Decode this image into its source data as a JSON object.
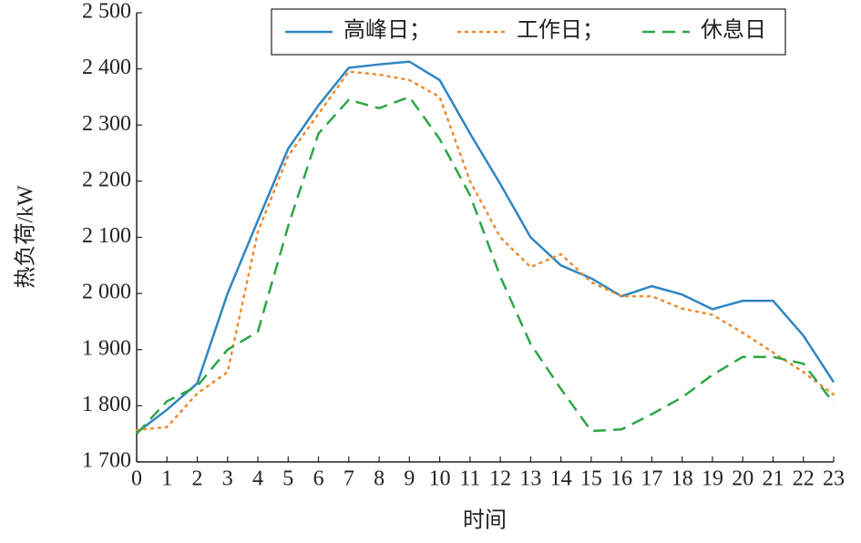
{
  "chart_data": {
    "type": "line",
    "x_label": "时间",
    "y_label": "热负荷/kW",
    "x": [
      0,
      1,
      2,
      3,
      4,
      5,
      6,
      7,
      8,
      9,
      10,
      11,
      12,
      13,
      14,
      15,
      16,
      17,
      18,
      19,
      20,
      21,
      22,
      23
    ],
    "xlim": [
      0,
      23
    ],
    "xticks": [
      0,
      1,
      2,
      3,
      4,
      5,
      6,
      7,
      8,
      9,
      10,
      11,
      12,
      13,
      14,
      15,
      16,
      17,
      18,
      19,
      20,
      21,
      22,
      23
    ],
    "ylim": [
      1700,
      2500
    ],
    "yticks": [
      {
        "value": 1700,
        "label": "1 700"
      },
      {
        "value": 1800,
        "label": "1 800"
      },
      {
        "value": 1900,
        "label": "1 900"
      },
      {
        "value": 2000,
        "label": "2 000"
      },
      {
        "value": 2100,
        "label": "2 100"
      },
      {
        "value": 2200,
        "label": "2 200"
      },
      {
        "value": 2300,
        "label": "2 300"
      },
      {
        "value": 2400,
        "label": "2 400"
      },
      {
        "value": 2500,
        "label": "2 500"
      }
    ],
    "legend": "top-right",
    "series": [
      {
        "name": "高峰日；",
        "color": "#2f86c2",
        "style": "solid",
        "values": [
          1752,
          1793,
          1840,
          2000,
          2130,
          2258,
          2335,
          2402,
          2408,
          2413,
          2380,
          2285,
          2195,
          2100,
          2050,
          2027,
          1995,
          2013,
          1998,
          1972,
          1987,
          1987,
          1925,
          1842
        ]
      },
      {
        "name": "工作日；",
        "color": "#ee8a2e",
        "style": "dotted",
        "values": [
          1757,
          1762,
          1822,
          1860,
          2110,
          2245,
          2320,
          2395,
          2390,
          2380,
          2350,
          2200,
          2100,
          2047,
          2070,
          2020,
          1995,
          1995,
          1973,
          1962,
          1930,
          1895,
          1860,
          1820
        ]
      },
      {
        "name": "休息日",
        "color": "#2ea645",
        "style": "dashed",
        "values": [
          1750,
          1808,
          1835,
          1900,
          1932,
          2120,
          2285,
          2345,
          2330,
          2350,
          2275,
          2175,
          2030,
          1910,
          1830,
          1755,
          1758,
          1785,
          1815,
          1855,
          1887,
          1887,
          1875,
          1805
        ]
      }
    ]
  }
}
